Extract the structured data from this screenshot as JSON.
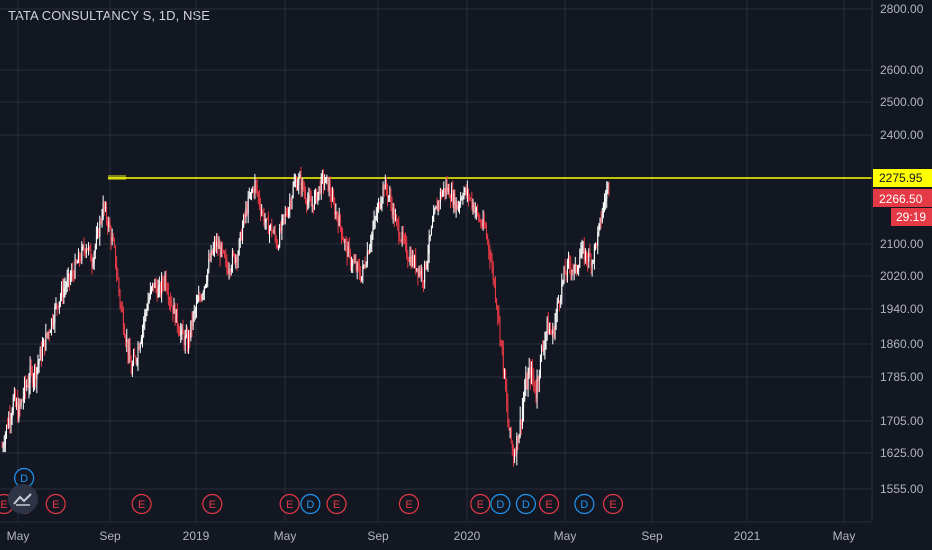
{
  "header": {
    "title": "TATA CONSULTANCY S, 1D, NSE"
  },
  "chart_data": {
    "type": "candlestick",
    "symbol": "TATA CONSULTANCY S",
    "interval": "1D",
    "exchange": "NSE",
    "y_ticks": [
      1555,
      1625,
      1705,
      1785,
      1860,
      1940,
      2020,
      2100,
      2400,
      2500,
      2600,
      2800
    ],
    "y_tick_labels": [
      "1555.00",
      "1625.00",
      "1705.00",
      "1785.00",
      "1860.00",
      "1940.00",
      "2020.00",
      "2100.00",
      "2400.00",
      "2500.00",
      "2600.00",
      "2800.00"
    ],
    "x_ticks": [
      "May",
      "Sep",
      "2019",
      "May",
      "Sep",
      "2020",
      "May",
      "Sep",
      "2021",
      "May"
    ],
    "horizontal_line": {
      "value": 2275.95,
      "label": "2275.95",
      "color": "#ffff00"
    },
    "last_price": {
      "value": 2266.5,
      "label": "2266.50",
      "color": "#e63946"
    },
    "countdown": "29:19",
    "close_series": [
      1640,
      1700,
      1740,
      1720,
      1760,
      1790,
      1800,
      1840,
      1880,
      1920,
      1960,
      1990,
      2010,
      2040,
      2070,
      2100,
      2060,
      2120,
      2200,
      2150,
      2080,
      1960,
      1880,
      1800,
      1840,
      1900,
      1960,
      2000,
      1980,
      2020,
      1960,
      1920,
      1880,
      1860,
      1920,
      1960,
      2000,
      2060,
      2100,
      2080,
      2040,
      2060,
      2080,
      2160,
      2220,
      2260,
      2200,
      2150,
      2140,
      2100,
      2160,
      2200,
      2260,
      2270,
      2230,
      2200,
      2230,
      2270,
      2260,
      2200,
      2160,
      2100,
      2060,
      2040,
      2020,
      2080,
      2140,
      2200,
      2260,
      2220,
      2160,
      2120,
      2080,
      2060,
      2040,
      2020,
      2100,
      2180,
      2230,
      2250,
      2230,
      2200,
      2240,
      2230,
      2200,
      2160,
      2140,
      2060,
      1960,
      1840,
      1700,
      1620,
      1680,
      1760,
      1800,
      1760,
      1840,
      1900,
      1880,
      1960,
      2020,
      2050,
      2030,
      2080,
      2070,
      2060,
      2120,
      2200,
      2266.5
    ],
    "events": [
      {
        "type": "E",
        "t": 0.0
      },
      {
        "type": "D",
        "t": 0.033
      },
      {
        "type": "D",
        "t": 0.033,
        "row": "upper"
      },
      {
        "type": "E",
        "t": 0.033
      },
      {
        "type": "E",
        "t": 0.085
      },
      {
        "type": "E",
        "t": 0.226
      },
      {
        "type": "E",
        "t": 0.342
      },
      {
        "type": "E",
        "t": 0.469
      },
      {
        "type": "D",
        "t": 0.503
      },
      {
        "type": "E",
        "t": 0.546
      },
      {
        "type": "E",
        "t": 0.665
      },
      {
        "type": "E",
        "t": 0.782
      },
      {
        "type": "D",
        "t": 0.815
      },
      {
        "type": "D",
        "t": 0.857
      },
      {
        "type": "E",
        "t": 0.895
      },
      {
        "type": "D",
        "t": 0.953
      },
      {
        "type": "E",
        "t": 1.0
      }
    ],
    "colors": {
      "background": "#131722",
      "grid": "#2a2e39",
      "candle_up": "#ffffff",
      "candle_down": "#e63946",
      "earnings": "#e63946",
      "dividend": "#2196f3"
    }
  }
}
